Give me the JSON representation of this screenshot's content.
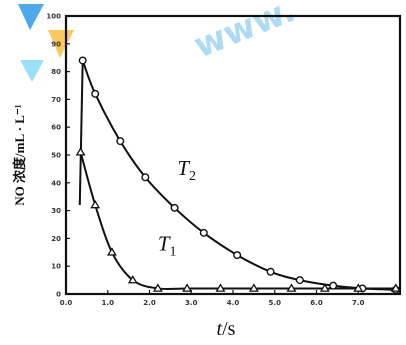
{
  "chart_data": {
    "type": "line",
    "xlabel_main": "t",
    "xlabel_unit": "/s",
    "ylabel": "NO 浓度/mL · L⁻¹",
    "xlim": [
      0,
      8
    ],
    "ylim": [
      0,
      100
    ],
    "grid": false,
    "xticks": [
      "0.0",
      "1.0",
      "2.0",
      "3.0",
      "4.0",
      "5.0",
      "6.0",
      "7.0"
    ],
    "yticks": [
      "0",
      "10",
      "20",
      "30",
      "40",
      "50",
      "60",
      "70",
      "80",
      "90",
      "100"
    ],
    "watermark_text": "www.",
    "series": [
      {
        "name": "T₂",
        "label_main": "T",
        "label_sub": "2",
        "marker": "circle",
        "x": [
          0.4,
          0.7,
          1.3,
          1.9,
          2.6,
          3.3,
          4.1,
          4.9,
          5.6,
          6.4,
          7.1,
          7.9
        ],
        "y": [
          84,
          72,
          55,
          42,
          31,
          22,
          14,
          8,
          5,
          3,
          2,
          1.5
        ]
      },
      {
        "name": "T₁",
        "label_main": "T",
        "label_sub": "1",
        "marker": "triangle",
        "x": [
          0.35,
          0.7,
          1.1,
          1.6,
          2.2,
          2.9,
          3.7,
          4.5,
          5.4,
          6.2,
          7.0,
          7.9
        ],
        "y": [
          51,
          32,
          15,
          5,
          2,
          2,
          2,
          2,
          2,
          2,
          2,
          2
        ]
      }
    ],
    "pre_spike_x": 0.33,
    "pre_spike_y": 32
  }
}
